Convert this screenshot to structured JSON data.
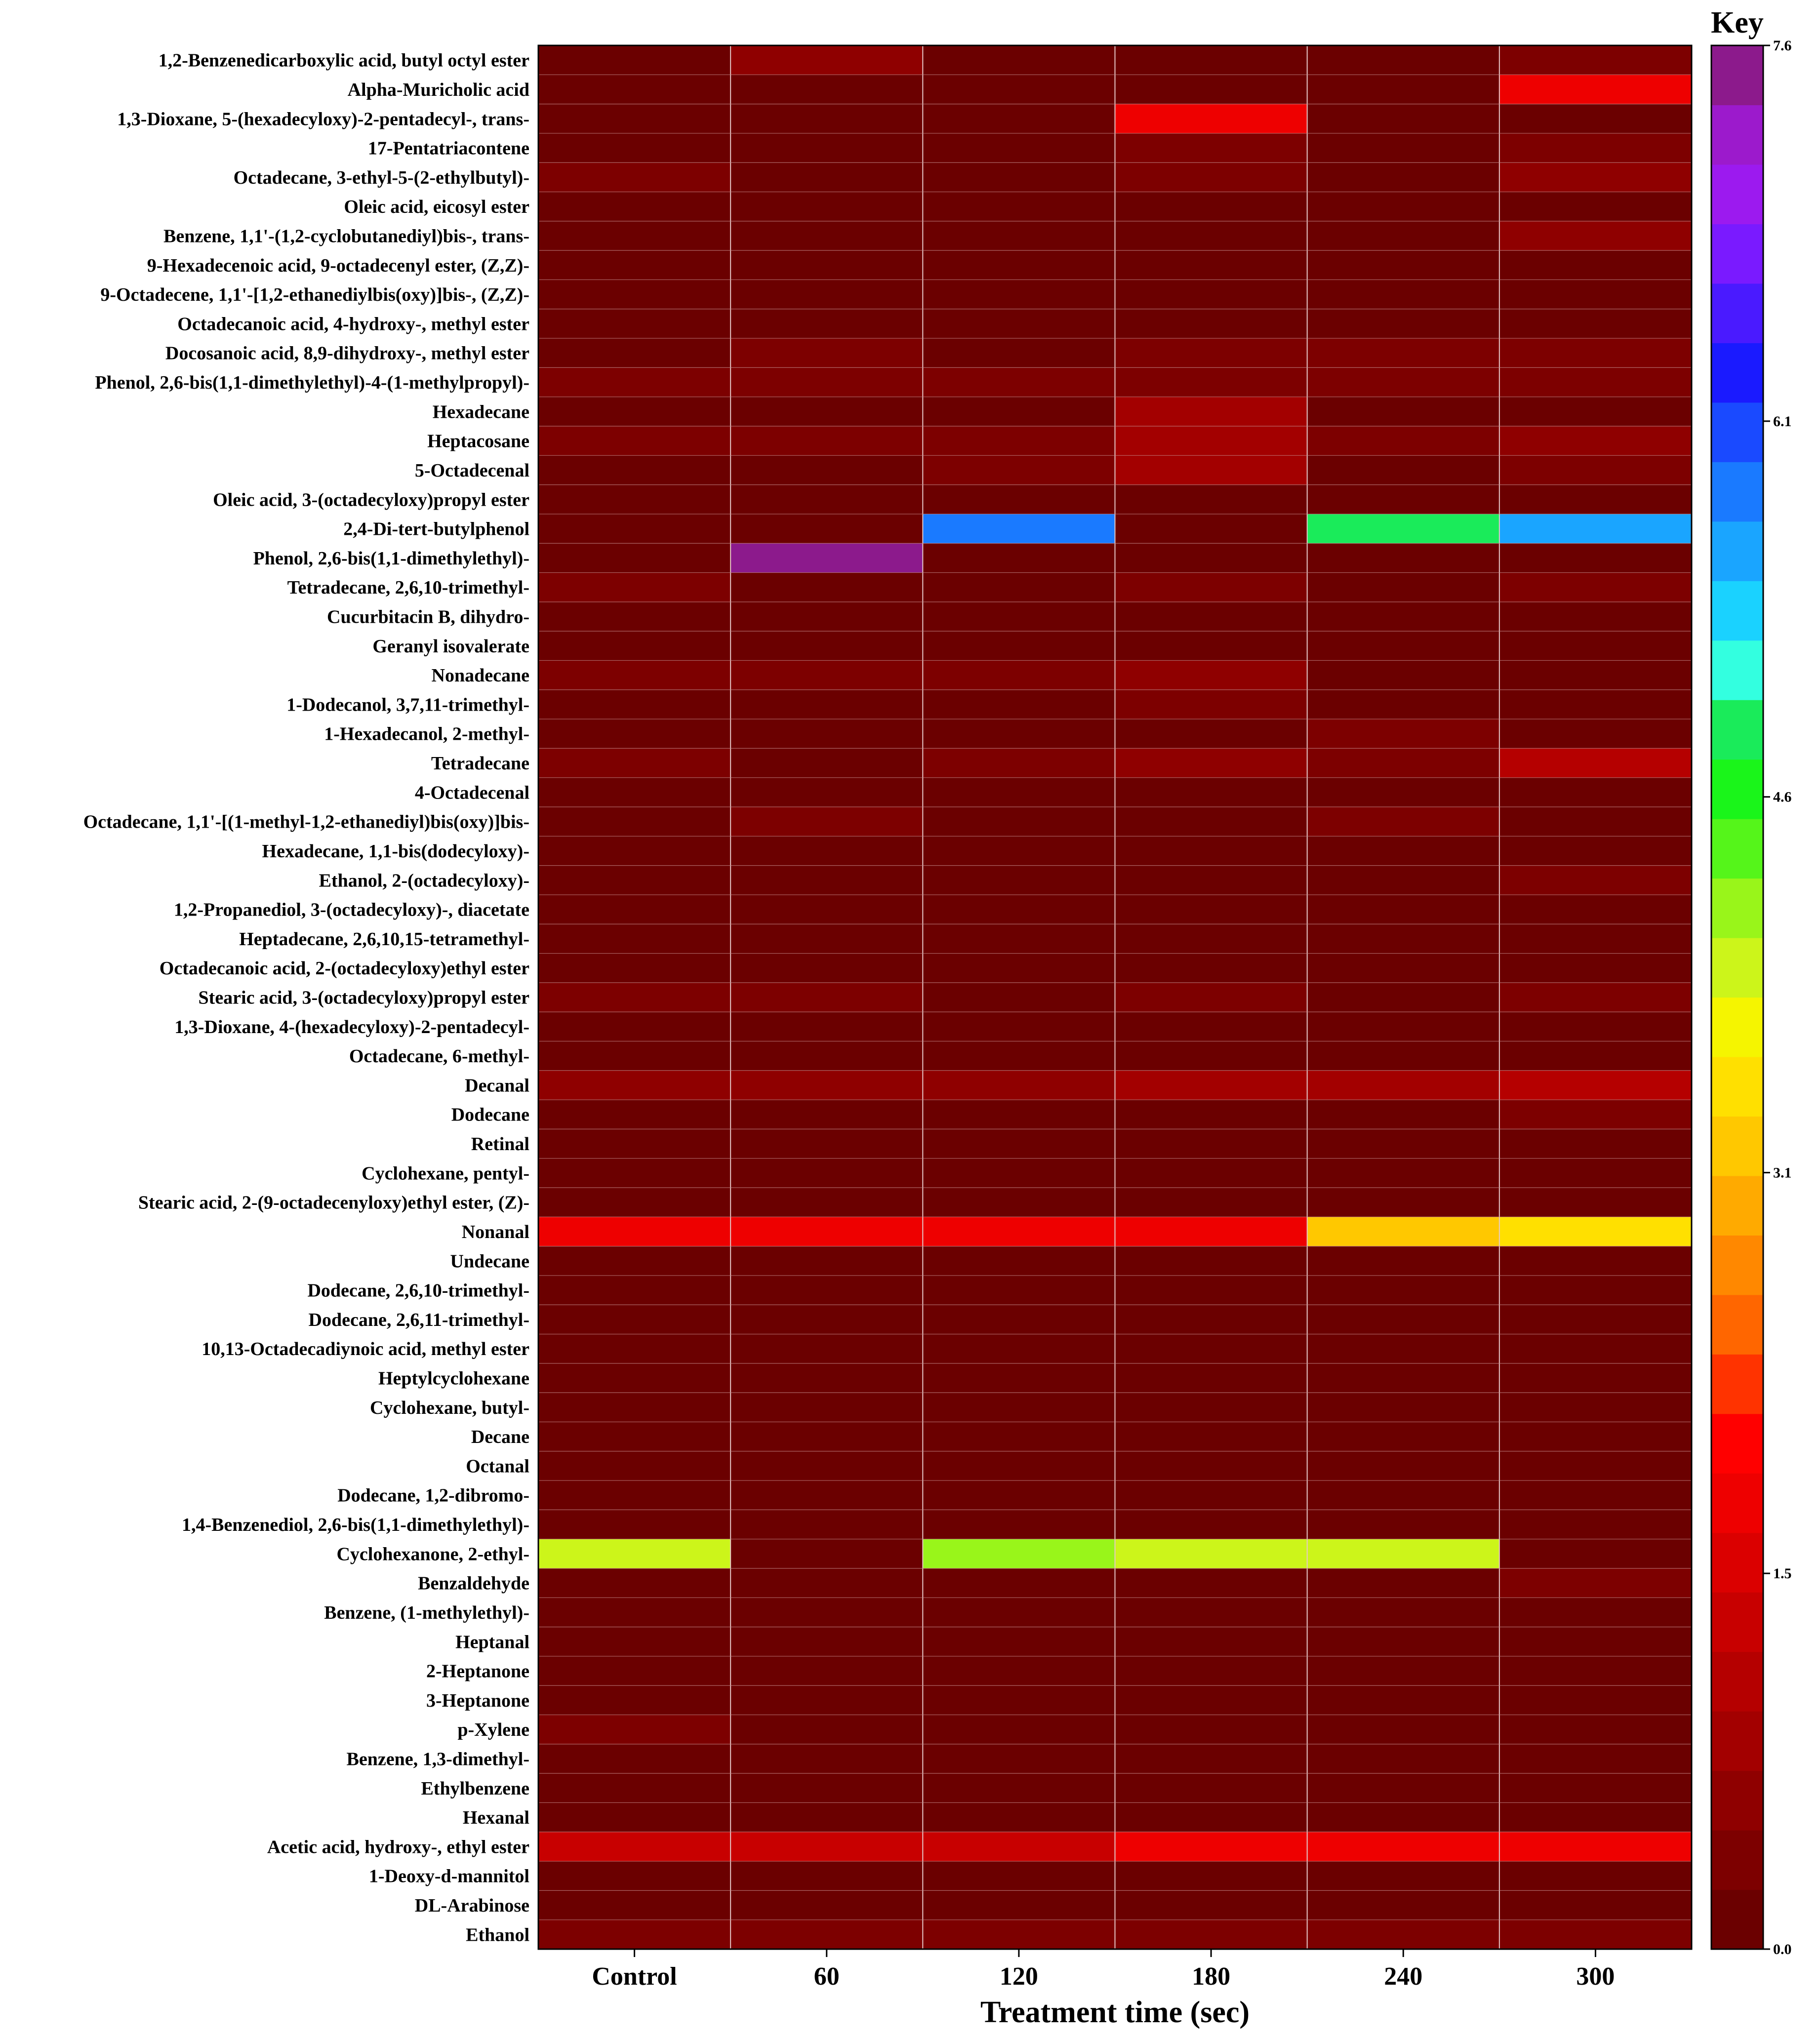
{
  "chart_data": {
    "type": "heatmap",
    "title": "",
    "xlabel": "Treatment time (sec)",
    "ylabel": "",
    "columns": [
      "Control",
      "60",
      "120",
      "180",
      "240",
      "300"
    ],
    "rows": [
      {
        "name": "1,2-Benzenedicarboxylic acid, butyl octyl ester",
        "values": [
          0.1,
          0.6,
          0.1,
          0.1,
          0.1,
          0.4
        ]
      },
      {
        "name": "Alpha-Muricholic acid",
        "values": [
          0.1,
          0.1,
          0.1,
          0.1,
          0.1,
          1.7
        ]
      },
      {
        "name": "1,3-Dioxane, 5-(hexadecyloxy)-2-pentadecyl-, trans-",
        "values": [
          0.1,
          0.1,
          0.1,
          1.8,
          0.1,
          0.1
        ]
      },
      {
        "name": "17-Pentatriacontene",
        "values": [
          0.1,
          0.1,
          0.1,
          0.3,
          0.1,
          0.3
        ]
      },
      {
        "name": "Octadecane, 3-ethyl-5-(2-ethylbutyl)-",
        "values": [
          0.4,
          0.1,
          0.1,
          0.3,
          0.1,
          0.6
        ]
      },
      {
        "name": "Oleic acid, eicosyl ester",
        "values": [
          0.1,
          0.1,
          0.1,
          0.1,
          0.1,
          0.1
        ]
      },
      {
        "name": "Benzene, 1,1'-(1,2-cyclobutanediyl)bis-, trans-",
        "values": [
          0.1,
          0.1,
          0.1,
          0.1,
          0.1,
          0.7
        ]
      },
      {
        "name": "9-Hexadecenoic acid, 9-octadecenyl ester, (Z,Z)-",
        "values": [
          0.1,
          0.1,
          0.1,
          0.1,
          0.1,
          0.1
        ]
      },
      {
        "name": "9-Octadecene, 1,1'-[1,2-ethanediylbis(oxy)]bis-, (Z,Z)-",
        "values": [
          0.1,
          0.1,
          0.1,
          0.1,
          0.1,
          0.1
        ]
      },
      {
        "name": "Octadecanoic acid, 4-hydroxy-, methyl ester",
        "values": [
          0.1,
          0.1,
          0.1,
          0.1,
          0.1,
          0.1
        ]
      },
      {
        "name": "Docosanoic acid, 8,9-dihydroxy-, methyl ester",
        "values": [
          0.2,
          0.4,
          0.2,
          0.4,
          0.4,
          0.4
        ]
      },
      {
        "name": "Phenol, 2,6-bis(1,1-dimethylethyl)-4-(1-methylpropyl)-",
        "values": [
          0.4,
          0.4,
          0.4,
          0.4,
          0.4,
          0.4
        ]
      },
      {
        "name": "Hexadecane",
        "values": [
          0.1,
          0.1,
          0.1,
          0.9,
          0.1,
          0.1
        ]
      },
      {
        "name": "Heptacosane",
        "values": [
          0.4,
          0.4,
          0.4,
          0.9,
          0.4,
          0.6
        ]
      },
      {
        "name": "5-Octadecenal",
        "values": [
          0.2,
          0.2,
          0.4,
          0.9,
          0.2,
          0.4
        ]
      },
      {
        "name": "Oleic acid, 3-(octadecyloxy)propyl ester",
        "values": [
          0.1,
          0.1,
          0.1,
          0.1,
          0.1,
          0.1
        ]
      },
      {
        "name": "2,4-Di-tert-butylphenol",
        "values": [
          0.1,
          0.1,
          5.8,
          0.1,
          4.9,
          5.6
        ]
      },
      {
        "name": "Phenol, 2,6-bis(1,1-dimethylethyl)-",
        "values": [
          0.1,
          7.5,
          0.1,
          0.1,
          0.1,
          0.1
        ]
      },
      {
        "name": "Tetradecane, 2,6,10-trimethyl-",
        "values": [
          0.4,
          0.1,
          0.2,
          0.4,
          0.2,
          0.4
        ]
      },
      {
        "name": "Cucurbitacin B, dihydro-",
        "values": [
          0.1,
          0.1,
          0.1,
          0.1,
          0.1,
          0.1
        ]
      },
      {
        "name": "Geranyl isovalerate",
        "values": [
          0.1,
          0.1,
          0.1,
          0.1,
          0.1,
          0.1
        ]
      },
      {
        "name": "Nonadecane",
        "values": [
          0.4,
          0.4,
          0.4,
          0.7,
          0.1,
          0.1
        ]
      },
      {
        "name": "1-Dodecanol, 3,7,11-trimethyl-",
        "values": [
          0.1,
          0.1,
          0.1,
          0.4,
          0.1,
          0.1
        ]
      },
      {
        "name": "1-Hexadecanol, 2-methyl-",
        "values": [
          0.1,
          0.1,
          0.1,
          0.1,
          0.4,
          0.1
        ]
      },
      {
        "name": "Tetradecane",
        "values": [
          0.4,
          0.2,
          0.4,
          0.7,
          0.4,
          1.1
        ]
      },
      {
        "name": "4-Octadecenal",
        "values": [
          0.1,
          0.1,
          0.1,
          0.1,
          0.1,
          0.1
        ]
      },
      {
        "name": "Octadecane, 1,1'-[(1-methyl-1,2-ethanediyl)bis(oxy)]bis-",
        "values": [
          0.1,
          0.4,
          0.1,
          0.1,
          0.4,
          0.1
        ]
      },
      {
        "name": "Hexadecane, 1,1-bis(dodecyloxy)-",
        "values": [
          0.1,
          0.1,
          0.1,
          0.1,
          0.1,
          0.1
        ]
      },
      {
        "name": "Ethanol, 2-(octadecyloxy)-",
        "values": [
          0.1,
          0.1,
          0.1,
          0.1,
          0.1,
          0.4
        ]
      },
      {
        "name": "1,2-Propanediol, 3-(octadecyloxy)-, diacetate",
        "values": [
          0.1,
          0.1,
          0.1,
          0.1,
          0.1,
          0.1
        ]
      },
      {
        "name": "Heptadecane, 2,6,10,15-tetramethyl-",
        "values": [
          0.1,
          0.1,
          0.1,
          0.1,
          0.1,
          0.1
        ]
      },
      {
        "name": "Octadecanoic acid, 2-(octadecyloxy)ethyl ester",
        "values": [
          0.1,
          0.1,
          0.1,
          0.1,
          0.1,
          0.1
        ]
      },
      {
        "name": "Stearic acid, 3-(octadecyloxy)propyl ester",
        "values": [
          0.4,
          0.4,
          0.1,
          0.4,
          0.1,
          0.4
        ]
      },
      {
        "name": "1,3-Dioxane, 4-(hexadecyloxy)-2-pentadecyl-",
        "values": [
          0.1,
          0.1,
          0.1,
          0.1,
          0.1,
          0.1
        ]
      },
      {
        "name": "Octadecane, 6-methyl-",
        "values": [
          0.1,
          0.1,
          0.1,
          0.1,
          0.1,
          0.1
        ]
      },
      {
        "name": "Decanal",
        "values": [
          0.6,
          0.6,
          0.6,
          0.9,
          0.9,
          1.1
        ]
      },
      {
        "name": "Dodecane",
        "values": [
          0.1,
          0.1,
          0.1,
          0.1,
          0.2,
          0.4
        ]
      },
      {
        "name": "Retinal",
        "values": [
          0.1,
          0.1,
          0.1,
          0.1,
          0.1,
          0.1
        ]
      },
      {
        "name": "Cyclohexane, pentyl-",
        "values": [
          0.1,
          0.1,
          0.1,
          0.1,
          0.1,
          0.1
        ]
      },
      {
        "name": "Stearic acid, 2-(9-octadecenyloxy)ethyl ester, (Z)-",
        "values": [
          0.1,
          0.1,
          0.1,
          0.1,
          0.1,
          0.1
        ]
      },
      {
        "name": "Nonanal",
        "values": [
          1.8,
          1.8,
          1.8,
          1.8,
          3.2,
          3.5
        ]
      },
      {
        "name": "Undecane",
        "values": [
          0.1,
          0.1,
          0.1,
          0.1,
          0.1,
          0.1
        ]
      },
      {
        "name": "Dodecane, 2,6,10-trimethyl-",
        "values": [
          0.1,
          0.1,
          0.1,
          0.1,
          0.1,
          0.1
        ]
      },
      {
        "name": "Dodecane, 2,6,11-trimethyl-",
        "values": [
          0.1,
          0.1,
          0.1,
          0.1,
          0.1,
          0.1
        ]
      },
      {
        "name": "10,13-Octadecadiynoic acid, methyl ester",
        "values": [
          0.1,
          0.1,
          0.1,
          0.1,
          0.1,
          0.1
        ]
      },
      {
        "name": "Heptylcyclohexane",
        "values": [
          0.1,
          0.1,
          0.1,
          0.1,
          0.1,
          0.1
        ]
      },
      {
        "name": "Cyclohexane, butyl-",
        "values": [
          0.1,
          0.1,
          0.1,
          0.1,
          0.1,
          0.1
        ]
      },
      {
        "name": "Decane",
        "values": [
          0.1,
          0.1,
          0.1,
          0.1,
          0.1,
          0.1
        ]
      },
      {
        "name": "Octanal",
        "values": [
          0.1,
          0.1,
          0.1,
          0.1,
          0.1,
          0.1
        ]
      },
      {
        "name": "Dodecane, 1,2-dibromo-",
        "values": [
          0.1,
          0.1,
          0.1,
          0.1,
          0.1,
          0.1
        ]
      },
      {
        "name": "1,4-Benzenediol, 2,6-bis(1,1-dimethylethyl)-",
        "values": [
          0.1,
          0.1,
          0.1,
          0.1,
          0.1,
          0.1
        ]
      },
      {
        "name": "Cyclohexanone, 2-ethyl-",
        "values": [
          3.8,
          0.1,
          4.2,
          4.0,
          4.0,
          0.1
        ]
      },
      {
        "name": "Benzaldehyde",
        "values": [
          0.1,
          0.1,
          0.2,
          0.2,
          0.2,
          0.4
        ]
      },
      {
        "name": "Benzene, (1-methylethyl)-",
        "values": [
          0.1,
          0.1,
          0.1,
          0.1,
          0.1,
          0.1
        ]
      },
      {
        "name": "Heptanal",
        "values": [
          0.1,
          0.1,
          0.1,
          0.1,
          0.1,
          0.1
        ]
      },
      {
        "name": "2-Heptanone",
        "values": [
          0.1,
          0.1,
          0.1,
          0.1,
          0.1,
          0.1
        ]
      },
      {
        "name": "3-Heptanone",
        "values": [
          0.1,
          0.1,
          0.1,
          0.1,
          0.1,
          0.1
        ]
      },
      {
        "name": "p-Xylene",
        "values": [
          0.4,
          0.1,
          0.1,
          0.1,
          0.1,
          0.1
        ]
      },
      {
        "name": "Benzene, 1,3-dimethyl-",
        "values": [
          0.1,
          0.1,
          0.1,
          0.1,
          0.1,
          0.1
        ]
      },
      {
        "name": "Ethylbenzene",
        "values": [
          0.1,
          0.1,
          0.1,
          0.1,
          0.1,
          0.1
        ]
      },
      {
        "name": "Hexanal",
        "values": [
          0.1,
          0.1,
          0.1,
          0.1,
          0.1,
          0.1
        ]
      },
      {
        "name": "Acetic acid, hydroxy-, ethyl ester",
        "values": [
          1.3,
          1.3,
          1.3,
          1.7,
          1.7,
          1.7
        ]
      },
      {
        "name": "1-Deoxy-d-mannitol",
        "values": [
          0.1,
          0.1,
          0.1,
          0.1,
          0.1,
          0.1
        ]
      },
      {
        "name": "DL-Arabinose",
        "values": [
          0.1,
          0.1,
          0.1,
          0.1,
          0.1,
          0.1
        ]
      },
      {
        "name": "Ethanol",
        "values": [
          0.4,
          0.4,
          0.4,
          0.4,
          0.4,
          0.4
        ]
      }
    ],
    "colorbar": {
      "title": "Key",
      "min": 0.0,
      "max": 7.6,
      "ticks": [
        {
          "value": 0.0,
          "label": "0.0"
        },
        {
          "value": 1.5,
          "label": "1.5"
        },
        {
          "value": 3.1,
          "label": "3.1"
        },
        {
          "value": 4.6,
          "label": "4.6"
        },
        {
          "value": 6.1,
          "label": "6.1"
        },
        {
          "value": 7.6,
          "label": "7.6"
        }
      ],
      "colors": [
        "#6b0000",
        "#7d0000",
        "#8f0000",
        "#a30000",
        "#b50000",
        "#c80000",
        "#db0000",
        "#ee0000",
        "#ff0000",
        "#ff3300",
        "#ff6600",
        "#ff8800",
        "#ffaa00",
        "#ffc800",
        "#ffe000",
        "#f5f500",
        "#ccf51a",
        "#99f51a",
        "#55f51a",
        "#1af51a",
        "#1aeb5a",
        "#33ffe0",
        "#1ad2ff",
        "#1aa5ff",
        "#1a7aff",
        "#1a4aff",
        "#1a1aff",
        "#4a1aff",
        "#7a1aff",
        "#9c1aef",
        "#9c1acc",
        "#8c1a8c"
      ]
    }
  }
}
